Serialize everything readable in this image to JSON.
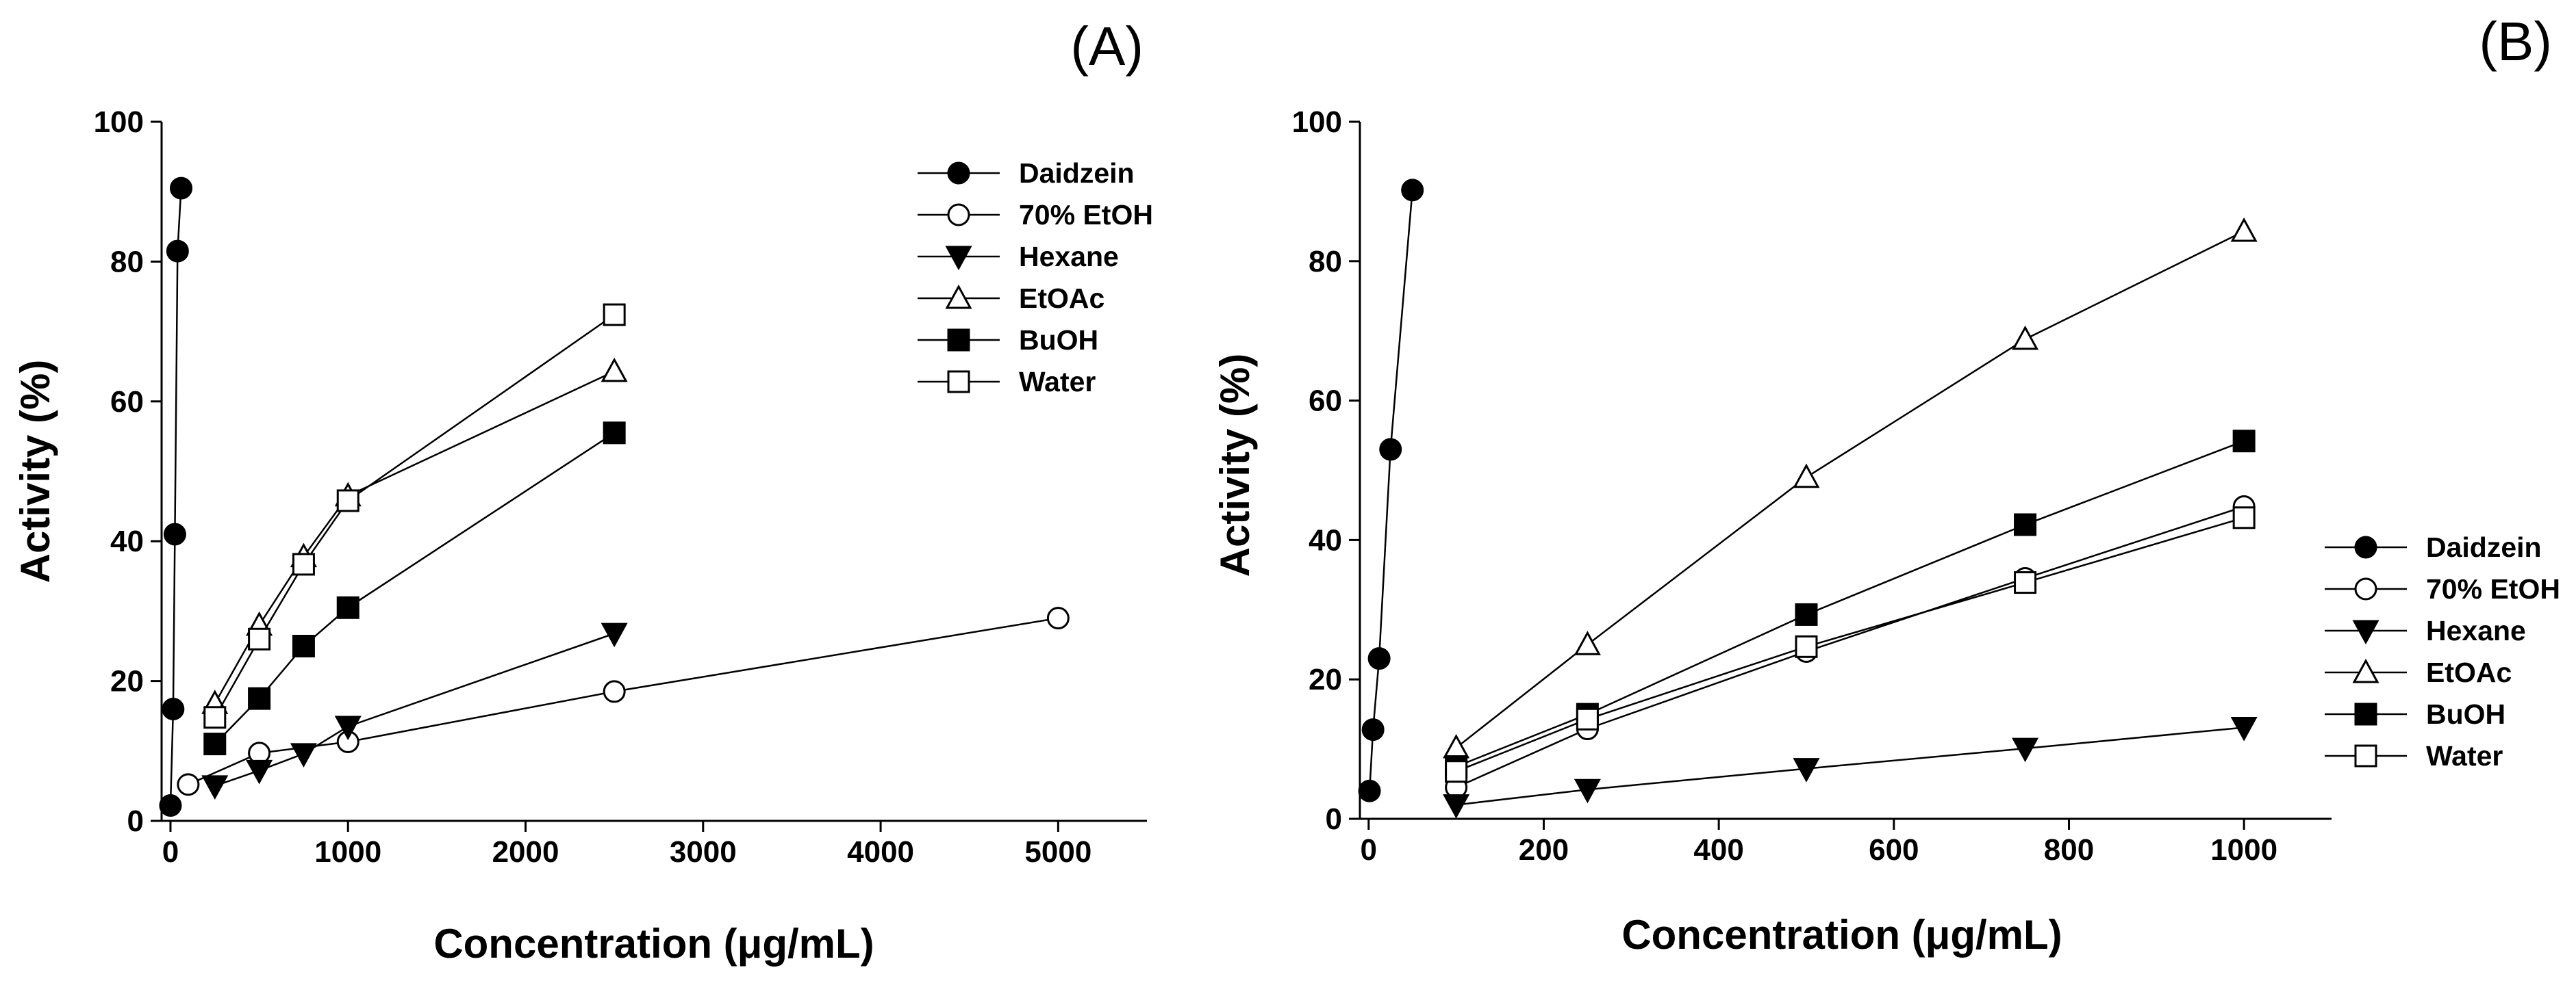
{
  "chart_data": [
    {
      "type": "line",
      "panel_label": "(A)",
      "xlabel": "Concentration (μg/mL)",
      "ylabel": "Activity (%)",
      "xlim": [
        -50,
        5500
      ],
      "ylim": [
        0,
        100
      ],
      "xticks": [
        0,
        1000,
        2000,
        3000,
        4000,
        5000
      ],
      "xtick_labels": [
        "0",
        "1000",
        "2000",
        "3000",
        "4000",
        "5000"
      ],
      "yticks": [
        0,
        20,
        40,
        60,
        80,
        100
      ],
      "ytick_labels": [
        "0",
        "20",
        "40",
        "60",
        "80",
        "100"
      ],
      "grid": false,
      "legend_position": "top-right",
      "series": [
        {
          "name": "Daidzein",
          "marker": "circle-filled",
          "x": [
            0,
            15,
            25,
            40,
            60
          ],
          "y": [
            2.2,
            16,
            41,
            81.5,
            90.5
          ]
        },
        {
          "name": "70% EtOH",
          "marker": "circle-open",
          "x": [
            100,
            500,
            1000,
            2500,
            5000
          ],
          "y": [
            5.2,
            9.7,
            11.3,
            18.5,
            29
          ]
        },
        {
          "name": "Hexane",
          "marker": "triangle-down-filled",
          "x": [
            250,
            500,
            750,
            1000,
            2500
          ],
          "y": [
            5,
            7.2,
            9.6,
            13.5,
            26.8
          ]
        },
        {
          "name": "EtOAc",
          "marker": "triangle-up-open",
          "x": [
            250,
            500,
            750,
            1000,
            2500
          ],
          "y": [
            16.8,
            28,
            37.8,
            46.5,
            64.3
          ]
        },
        {
          "name": "BuOH",
          "marker": "square-filled",
          "x": [
            250,
            500,
            750,
            1000,
            2500
          ],
          "y": [
            11,
            17.5,
            25,
            30.5,
            55.5
          ]
        },
        {
          "name": "Water",
          "marker": "square-open",
          "x": [
            250,
            500,
            750,
            1000,
            2500
          ],
          "y": [
            14.8,
            26,
            36.7,
            45.8,
            72.4
          ]
        }
      ]
    },
    {
      "type": "line",
      "panel_label": "(B)",
      "xlabel": "Concentration (μg/mL)",
      "ylabel": "Activity (%)",
      "xlim": [
        -10,
        1100
      ],
      "ylim": [
        0,
        100
      ],
      "xticks": [
        0,
        200,
        400,
        600,
        800,
        1000
      ],
      "xtick_labels": [
        "0",
        "200",
        "400",
        "600",
        "800",
        "1000"
      ],
      "yticks": [
        0,
        20,
        40,
        60,
        80,
        100
      ],
      "ytick_labels": [
        "0",
        "20",
        "40",
        "60",
        "80",
        "100"
      ],
      "grid": false,
      "legend_position": "right",
      "series": [
        {
          "name": "Daidzein",
          "marker": "circle-filled",
          "x": [
            1,
            5,
            12,
            25,
            50
          ],
          "y": [
            4,
            12.8,
            23,
            53,
            90.2
          ]
        },
        {
          "name": "70% EtOH",
          "marker": "circle-open",
          "x": [
            100,
            250,
            500,
            750,
            1000
          ],
          "y": [
            4.5,
            12.9,
            24,
            34.5,
            44.8
          ]
        },
        {
          "name": "Hexane",
          "marker": "triangle-down-filled",
          "x": [
            100,
            250,
            500,
            750,
            1000
          ],
          "y": [
            2,
            4.2,
            7.2,
            10.1,
            13.1
          ]
        },
        {
          "name": "EtOAc",
          "marker": "triangle-up-open",
          "x": [
            100,
            250,
            500,
            750,
            1000
          ],
          "y": [
            10.2,
            25,
            49,
            68.8,
            84.3
          ]
        },
        {
          "name": "BuOH",
          "marker": "square-filled",
          "x": [
            100,
            250,
            500,
            750,
            1000
          ],
          "y": [
            7.5,
            15,
            29.3,
            42.2,
            54.2
          ]
        },
        {
          "name": "Water",
          "marker": "square-open",
          "x": [
            100,
            250,
            500,
            750,
            1000
          ],
          "y": [
            6.8,
            14.3,
            24.7,
            33.9,
            43.2
          ]
        }
      ]
    }
  ]
}
